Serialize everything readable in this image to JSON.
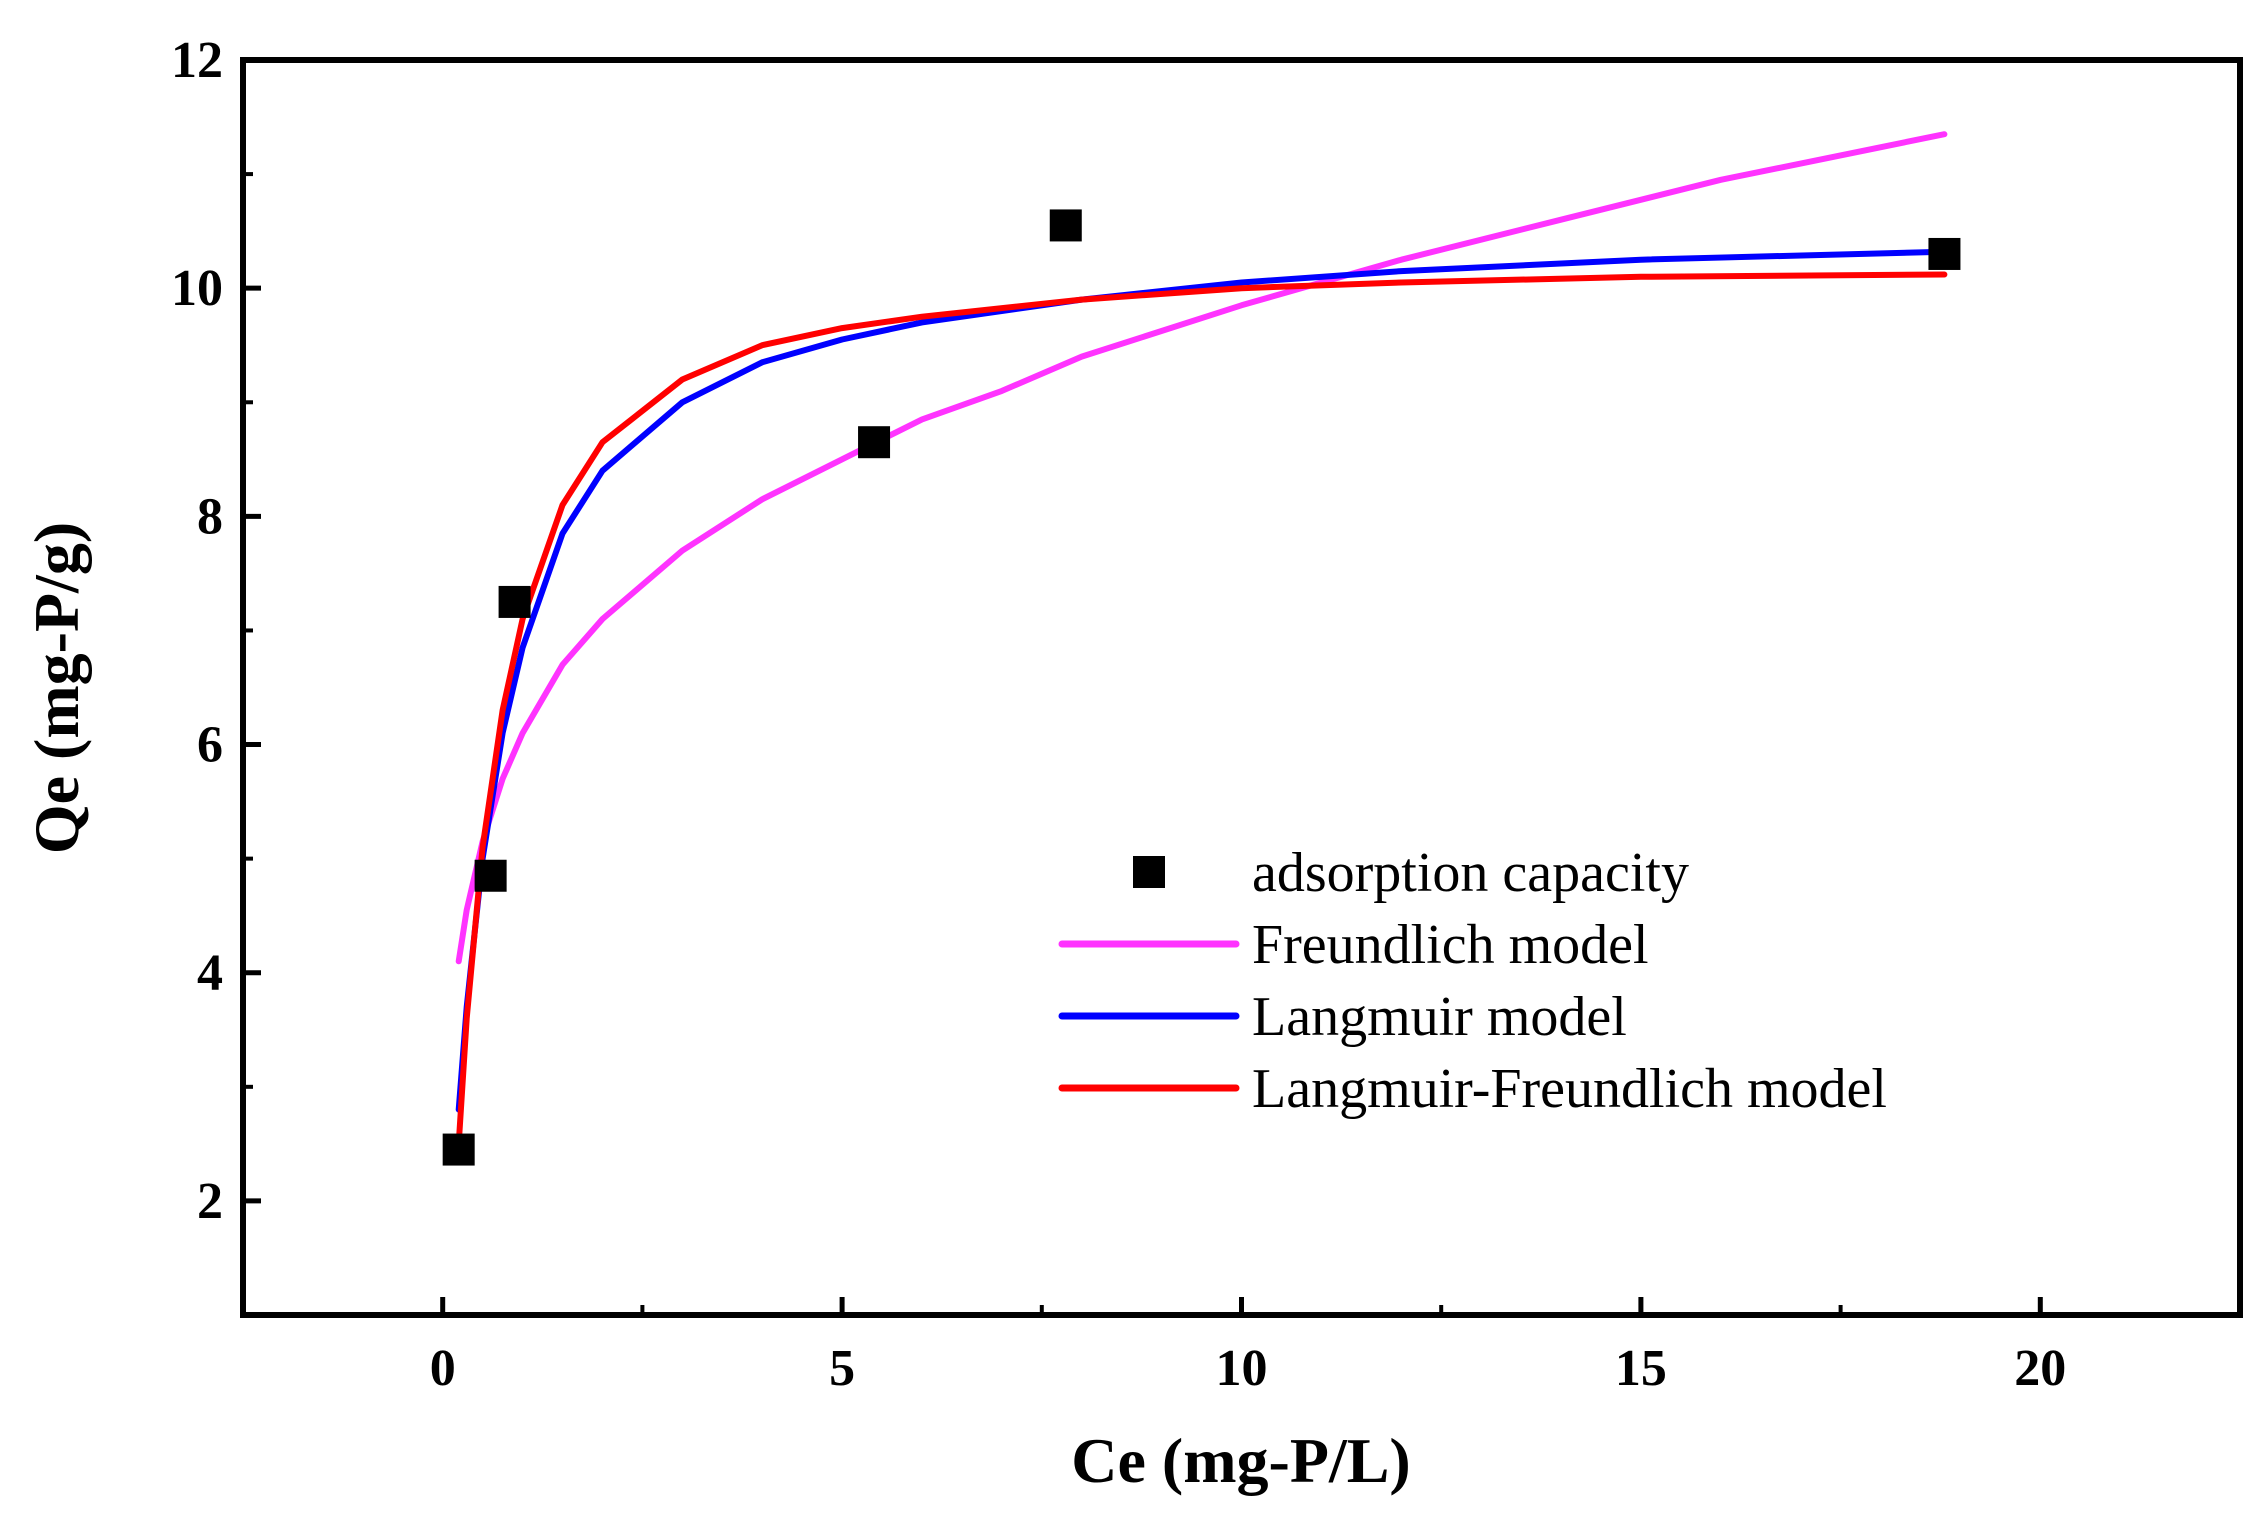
{
  "chart_data": {
    "type": "scatter",
    "title": "",
    "xlabel": "Ce (mg-P/L)",
    "ylabel": "Qe (mg-P/g)",
    "xlim": [
      -2.5,
      22.5
    ],
    "ylim": [
      1,
      12
    ],
    "xticks": [
      0,
      5,
      10,
      15,
      20
    ],
    "yticks": [
      2,
      4,
      6,
      8,
      10,
      12
    ],
    "xtick_labels": [
      "0",
      "5",
      "10",
      "15",
      "20"
    ],
    "ytick_labels": [
      "2",
      "4",
      "6",
      "8",
      "10",
      "12"
    ],
    "legend_position": "center-right",
    "series": [
      {
        "name": "adsorption capacity",
        "kind": "markers",
        "color": "#000000",
        "x": [
          0.2,
          0.6,
          0.9,
          5.4,
          7.8,
          18.8
        ],
        "y": [
          2.45,
          4.85,
          7.25,
          8.65,
          10.55,
          10.3
        ]
      },
      {
        "name": "Freundlich model",
        "kind": "line",
        "color": "#ff33ff",
        "x": [
          0.2,
          0.3,
          0.5,
          0.75,
          1.0,
          1.5,
          2.0,
          3.0,
          4.0,
          5.0,
          6.0,
          7.0,
          8.0,
          10.0,
          12.0,
          14.0,
          16.0,
          18.8
        ],
        "y": [
          4.1,
          4.55,
          5.15,
          5.7,
          6.1,
          6.7,
          7.1,
          7.7,
          8.15,
          8.5,
          8.85,
          9.1,
          9.4,
          9.85,
          10.25,
          10.6,
          10.95,
          11.35
        ]
      },
      {
        "name": "Langmuir model",
        "kind": "line",
        "color": "#0000ff",
        "x": [
          0.2,
          0.3,
          0.5,
          0.75,
          1.0,
          1.5,
          2.0,
          3.0,
          4.0,
          5.0,
          6.0,
          8.0,
          10.0,
          12.0,
          15.0,
          18.8
        ],
        "y": [
          2.8,
          3.7,
          5.0,
          6.1,
          6.85,
          7.85,
          8.4,
          9.0,
          9.35,
          9.55,
          9.7,
          9.9,
          10.05,
          10.15,
          10.25,
          10.32
        ]
      },
      {
        "name": "Langmuir-Freundlich model",
        "kind": "line",
        "color": "#ff0000",
        "x": [
          0.2,
          0.3,
          0.5,
          0.75,
          1.0,
          1.5,
          2.0,
          3.0,
          4.0,
          5.0,
          6.0,
          8.0,
          10.0,
          12.0,
          15.0,
          18.8
        ],
        "y": [
          2.5,
          3.6,
          5.1,
          6.3,
          7.1,
          8.1,
          8.65,
          9.2,
          9.5,
          9.65,
          9.75,
          9.9,
          10.0,
          10.05,
          10.1,
          10.12
        ]
      }
    ]
  }
}
